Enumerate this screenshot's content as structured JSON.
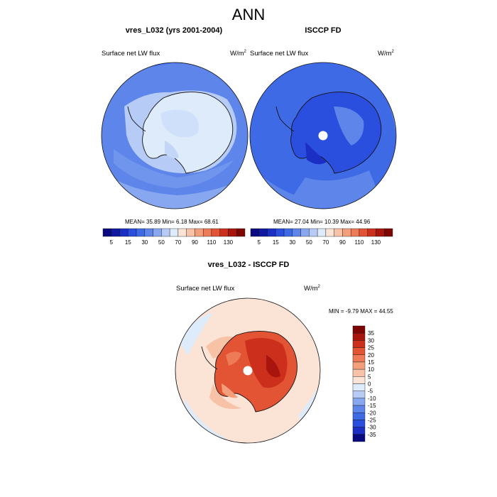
{
  "title": "ANN",
  "panels": [
    {
      "title": "vres_L032 (yrs 2001-2004)",
      "variable": "Surface net LW flux",
      "units": "W/m",
      "units_sup": "2",
      "stats": "MEAN=  35.89  Min=   6.18  Max=  68.61"
    },
    {
      "title": "ISCCP FD",
      "variable": "Surface net LW flux",
      "units": "W/m",
      "units_sup": "2",
      "stats": "MEAN=  27.04  Min=  10.39  Max=  44.96"
    }
  ],
  "diff_panel": {
    "title": "vres_L032 - ISCCP FD",
    "variable": "Surface net LW flux",
    "units": "W/m",
    "units_sup": "2",
    "stats": "MIN =  -9.79 MAX =  44.55"
  },
  "top_colorbar": {
    "colors": [
      "#0a0a80",
      "#10189f",
      "#1c2fc4",
      "#2a4ede",
      "#3f6ae6",
      "#5e86ea",
      "#87a8f0",
      "#b6ccf6",
      "#deebfb",
      "#fbe3d6",
      "#f7c2a6",
      "#f49f7c",
      "#ee7b57",
      "#e35435",
      "#cc2f1b",
      "#a8150d",
      "#7d0502"
    ],
    "labels": [
      "5",
      "15",
      "30",
      "50",
      "70",
      "90",
      "110",
      "130"
    ]
  },
  "diff_colorbar": {
    "colors": [
      "#7d0502",
      "#a8150d",
      "#cc2f1b",
      "#e35435",
      "#ee7b57",
      "#f49f7c",
      "#f7c2a6",
      "#fbe3d6",
      "#deebfb",
      "#b6ccf6",
      "#87a8f0",
      "#5e86ea",
      "#3f6ae6",
      "#2a4ede",
      "#1c2fc4",
      "#0a0a80"
    ],
    "labels": [
      "35",
      "30",
      "25",
      "20",
      "15",
      "10",
      "5",
      "0",
      "-5",
      "-10",
      "-15",
      "-20",
      "-25",
      "-30",
      "-35"
    ]
  }
}
